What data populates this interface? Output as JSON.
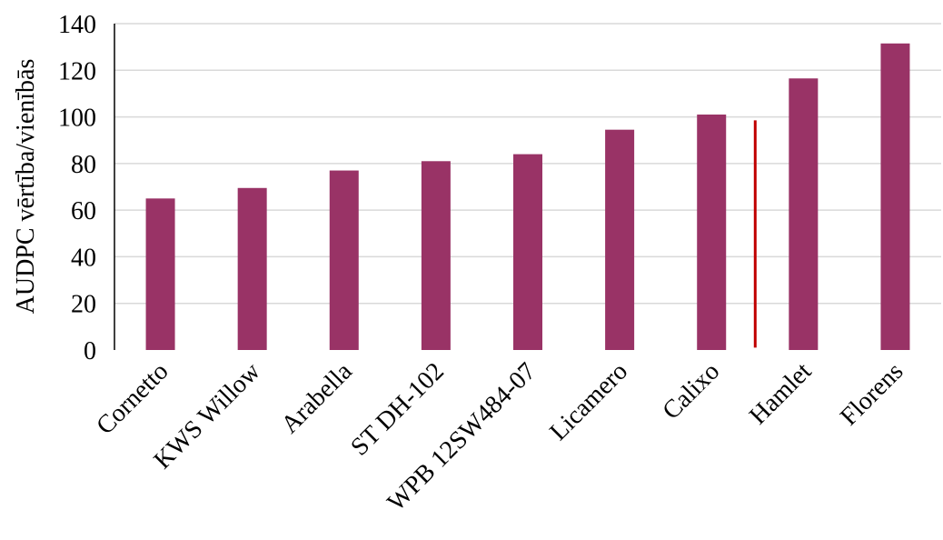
{
  "chart_data": {
    "type": "bar",
    "categories": [
      "Cornetto",
      "KWS Willow",
      "Arabella",
      "ST DH-102",
      "WPB 12SW484-07",
      "Licamero",
      "Calixo",
      "Hamlet",
      "Florens"
    ],
    "values": [
      65,
      69.5,
      77,
      81,
      84,
      94.5,
      101,
      116.5,
      131.5
    ],
    "ylabel": "AUDPC vērtība/vienībās",
    "xlabel": "",
    "title": "",
    "ylim": [
      0,
      140
    ],
    "yticks": [
      0,
      20,
      40,
      60,
      80,
      100,
      120,
      140
    ],
    "grid": true,
    "legend": "none",
    "reference_line": {
      "value_top": 98.5,
      "value_bottom": 1,
      "between": [
        "Calixo",
        "Hamlet"
      ]
    },
    "colors": {
      "bar": "#993366",
      "reference_line": "#C00000",
      "grid": "#D9D9D9",
      "axis": "#000000"
    }
  }
}
